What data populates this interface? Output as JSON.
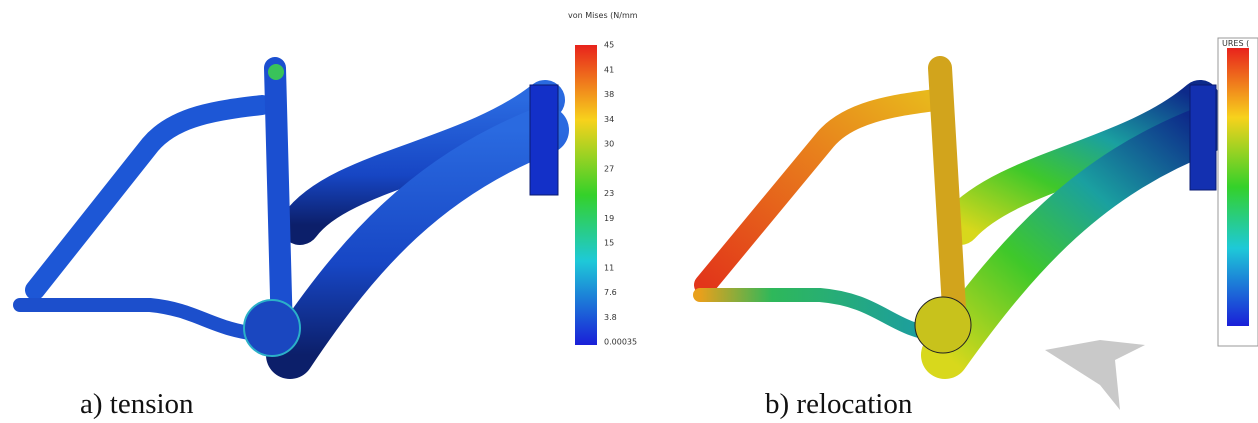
{
  "figures": [
    {
      "caption": "a) tension",
      "legend": {
        "title": "von Mises (N/mm",
        "ticks": [
          "45",
          "41",
          "38",
          "34",
          "30",
          "27",
          "23",
          "19",
          "15",
          "11",
          "7.6",
          "3.8",
          "0.00035"
        ]
      }
    },
    {
      "caption": "b) relocation",
      "legend": {
        "title": "URES ("
      }
    }
  ]
}
